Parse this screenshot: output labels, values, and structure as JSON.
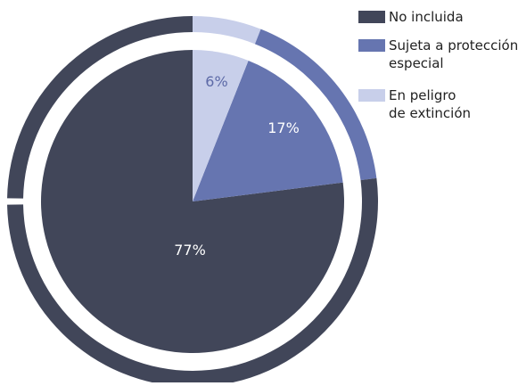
{
  "chart_data": {
    "type": "pie",
    "categories": [
      "No incluida",
      "Sujeta a protección especial",
      "En peligro de extinción"
    ],
    "values": [
      77,
      17,
      6
    ],
    "data_labels": [
      "77%",
      "17%",
      "6%"
    ],
    "legend_lines": [
      [
        "No incluida"
      ],
      [
        "Sujeta a protección",
        "especial"
      ],
      [
        "En peligro",
        "de extinción"
      ]
    ],
    "colors": [
      "#414659",
      "#6675b0",
      "#c8cfea"
    ],
    "label_colors": [
      "#ffffff",
      "#ffffff",
      "#5d6aa7"
    ],
    "legend_placement": "top-right",
    "title": "",
    "style": "doughnut-outline-pie"
  }
}
